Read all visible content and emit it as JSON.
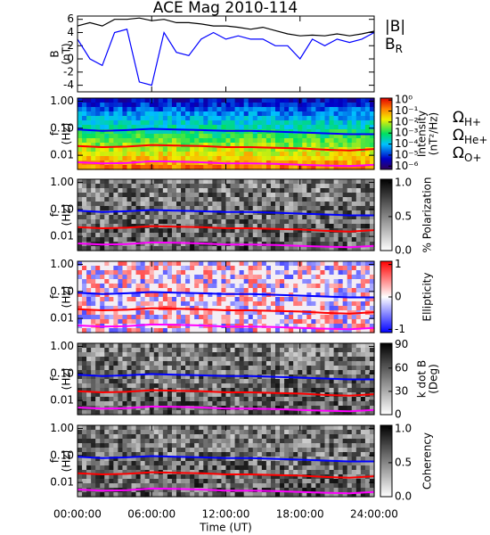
{
  "chart_data": [
    {
      "type": "line",
      "title": "ACE Mag 2010-114",
      "ylabel": [
        "B",
        "(nT)"
      ],
      "x": [
        0,
        1,
        2,
        3,
        4,
        5,
        6,
        7,
        8,
        9,
        10,
        11,
        12,
        13,
        14,
        15,
        16,
        17,
        18,
        19,
        20,
        21,
        22,
        23,
        24
      ],
      "xlim": [
        0,
        24
      ],
      "ylim": [
        -5,
        6.5
      ],
      "yticks": [
        -4,
        -2,
        0,
        2,
        4,
        6
      ],
      "series": [
        {
          "name": "|B|",
          "color": "#000000",
          "values": [
            5,
            5.5,
            5,
            6,
            6,
            6.2,
            5.8,
            6,
            5.5,
            5.5,
            5.3,
            5,
            5,
            4.8,
            4.5,
            4.8,
            4.3,
            3.8,
            3.5,
            3.6,
            3.5,
            3.8,
            3.5,
            3.8,
            4.2
          ]
        },
        {
          "name": "B",
          "sub": "R",
          "color": "#0000ff",
          "values": [
            3,
            0,
            -1,
            4,
            4.5,
            -3.5,
            -4,
            4,
            1,
            0.5,
            3,
            4,
            3,
            3.5,
            3,
            3,
            2,
            2,
            0,
            3,
            2,
            3,
            2.5,
            3,
            4
          ]
        }
      ]
    },
    {
      "type": "spectrogram",
      "ylabel": [
        "f",
        "(Hz)"
      ],
      "ylog": true,
      "ylim": [
        0.003,
        1.3
      ],
      "xlim": [
        0,
        24
      ],
      "yticks": [
        {
          "value": 1,
          "label": "1.00"
        },
        {
          "value": 0.1,
          "label": "0.10"
        },
        {
          "value": 0.01,
          "label": "0.01"
        }
      ],
      "colorbar": {
        "label": [
          "Intensity",
          "(nT²/Hz)"
        ],
        "colormap": "jet",
        "log": true,
        "lim": [
          5e-07,
          1.5
        ],
        "ticks": [
          {
            "value": 1,
            "label": "10⁰"
          },
          {
            "value": 0.1,
            "label": "10⁻¹"
          },
          {
            "value": 0.01,
            "label": "10⁻²"
          },
          {
            "value": 0.001,
            "label": "10⁻³"
          },
          {
            "value": 0.0001,
            "label": "10⁻⁴"
          },
          {
            "value": 1e-05,
            "label": "10⁻⁵"
          },
          {
            "value": 1e-06,
            "label": "10⁻⁶"
          }
        ]
      },
      "x": [
        0,
        2,
        4,
        6,
        8,
        10,
        12,
        14,
        16,
        18,
        20,
        22,
        24
      ],
      "series": [
        {
          "name": "Ω",
          "sub": "H+",
          "color": "#0000ff",
          "values": [
            0.09,
            0.08,
            0.085,
            0.095,
            0.09,
            0.085,
            0.08,
            0.08,
            0.075,
            0.07,
            0.065,
            0.06,
            0.06
          ]
        },
        {
          "name": "Ω",
          "sub": "He+",
          "color": "#ff0000",
          "values": [
            0.022,
            0.02,
            0.021,
            0.024,
            0.023,
            0.022,
            0.02,
            0.02,
            0.019,
            0.018,
            0.016,
            0.015,
            0.017
          ]
        },
        {
          "name": "Ω",
          "sub": "O+",
          "color": "#ff00ff",
          "values": [
            0.0055,
            0.005,
            0.0052,
            0.006,
            0.0058,
            0.0055,
            0.005,
            0.005,
            0.0048,
            0.0045,
            0.0042,
            0.004,
            0.0045
          ]
        }
      ]
    },
    {
      "type": "spectrogram",
      "ylabel": [
        "f",
        "(Hz)"
      ],
      "ylog": true,
      "ylim": [
        0.003,
        1.3
      ],
      "xlim": [
        0,
        24
      ],
      "yticks": [
        {
          "value": 1,
          "label": "1.00"
        },
        {
          "value": 0.1,
          "label": "0.10"
        },
        {
          "value": 0.01,
          "label": "0.01"
        }
      ],
      "colorbar": {
        "label": [
          "% Polarization"
        ],
        "colormap": "gray",
        "lim": [
          0,
          1.05
        ],
        "ticks": [
          {
            "value": 1,
            "label": "1.0"
          },
          {
            "value": 0.5,
            "label": "0.5"
          },
          {
            "value": 0,
            "label": "0.0"
          }
        ]
      }
    },
    {
      "type": "spectrogram",
      "ylabel": [
        "f",
        "(Hz)"
      ],
      "ylog": true,
      "ylim": [
        0.003,
        1.3
      ],
      "xlim": [
        0,
        24
      ],
      "yticks": [
        {
          "value": 1,
          "label": "1.00"
        },
        {
          "value": 0.1,
          "label": "0.10"
        },
        {
          "value": 0.01,
          "label": "0.01"
        }
      ],
      "colorbar": {
        "label": [
          "Ellipticity"
        ],
        "colormap": "bwr",
        "lim": [
          -1.1,
          1.1
        ],
        "ticks": [
          1,
          0,
          -1
        ]
      }
    },
    {
      "type": "spectrogram",
      "ylabel": [
        "f",
        "(Hz)"
      ],
      "ylog": true,
      "ylim": [
        0.003,
        1.3
      ],
      "xlim": [
        0,
        24
      ],
      "yticks": [
        {
          "value": 1,
          "label": "1.00"
        },
        {
          "value": 0.1,
          "label": "0.10"
        },
        {
          "value": 0.01,
          "label": "0.01"
        }
      ],
      "colorbar": {
        "label": [
          "k dot B",
          "(Deg)"
        ],
        "colormap": "gray",
        "lim": [
          0,
          92
        ],
        "ticks": [
          90,
          60,
          30,
          0
        ]
      }
    },
    {
      "type": "spectrogram",
      "ylabel": [
        "f",
        "(Hz)"
      ],
      "ylog": true,
      "ylim": [
        0.003,
        1.3
      ],
      "xlim": [
        0,
        24
      ],
      "yticks": [
        {
          "value": 1,
          "label": "1.00"
        },
        {
          "value": 0.1,
          "label": "0.10"
        },
        {
          "value": 0.01,
          "label": "0.01"
        }
      ],
      "colorbar": {
        "label": [
          "Coherency"
        ],
        "colormap": "gray",
        "lim": [
          0,
          1.05
        ],
        "ticks": [
          {
            "value": 1,
            "label": "1.0"
          },
          {
            "value": 0.5,
            "label": "0.5"
          },
          {
            "value": 0,
            "label": "0.0"
          }
        ]
      },
      "xticks": [
        {
          "value": 0,
          "label": "00:00:00"
        },
        {
          "value": 6,
          "label": "06:00:00"
        },
        {
          "value": 12,
          "label": "12:00:00"
        },
        {
          "value": 18,
          "label": "18:00:00"
        },
        {
          "value": 24,
          "label": "24:00:00"
        }
      ],
      "xlabel": "Time (UT)"
    }
  ]
}
